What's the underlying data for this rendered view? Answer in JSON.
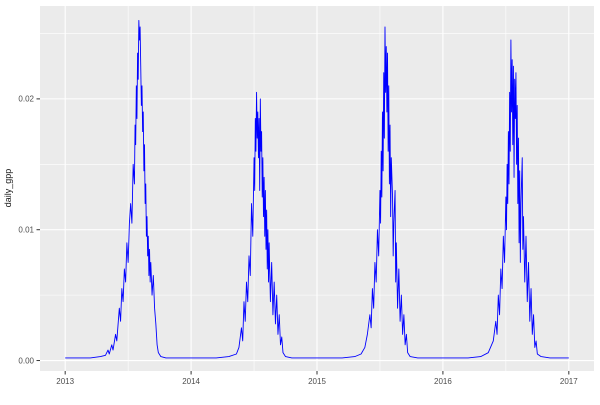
{
  "chart_data": {
    "type": "line",
    "title": "",
    "xlabel": "",
    "ylabel": "daily_gpp",
    "legend": "none",
    "grid": true,
    "style": "ggplot2",
    "panel_bg": "#EBEBEB",
    "grid_color": "#FFFFFF",
    "line_color": "#0000FF",
    "tick_label_color": "#4D4D4D",
    "axis_title_color": "#1A1A1A",
    "tick_mark_color": "#333333",
    "xlim": [
      2012.8,
      2017.2
    ],
    "ylim": [
      -0.0008,
      0.0271
    ],
    "x_ticks": [
      2013,
      2014,
      2015,
      2016,
      2017
    ],
    "x_tick_labels": [
      "2013",
      "2014",
      "2015",
      "2016",
      "2017"
    ],
    "x_minor_ticks": [
      2013.5,
      2014.5,
      2015.5,
      2016.5
    ],
    "y_ticks": [
      0,
      0.01,
      0.02
    ],
    "y_tick_labels": [
      "0.00",
      "0.01",
      "0.02"
    ],
    "y_minor_ticks": [
      0.005,
      0.015,
      0.025
    ],
    "points": [
      [
        2013.0,
        0.0002
      ],
      [
        2013.1,
        0.0002
      ],
      [
        2013.2,
        0.0002
      ],
      [
        2013.28,
        0.0003
      ],
      [
        2013.32,
        0.0004
      ],
      [
        2013.34,
        0.0008
      ],
      [
        2013.35,
        0.0005
      ],
      [
        2013.37,
        0.0012
      ],
      [
        2013.38,
        0.0008
      ],
      [
        2013.4,
        0.002
      ],
      [
        2013.41,
        0.0015
      ],
      [
        2013.43,
        0.004
      ],
      [
        2013.44,
        0.003
      ],
      [
        2013.45,
        0.0055
      ],
      [
        2013.46,
        0.0045
      ],
      [
        2013.47,
        0.007
      ],
      [
        2013.48,
        0.006
      ],
      [
        2013.49,
        0.009
      ],
      [
        2013.5,
        0.0075
      ],
      [
        2013.51,
        0.0105
      ],
      [
        2013.52,
        0.012
      ],
      [
        2013.53,
        0.0105
      ],
      [
        2013.54,
        0.015
      ],
      [
        2013.55,
        0.0135
      ],
      [
        2013.555,
        0.018
      ],
      [
        2013.56,
        0.0165
      ],
      [
        2013.565,
        0.021
      ],
      [
        2013.57,
        0.0185
      ],
      [
        2013.575,
        0.0235
      ],
      [
        2013.58,
        0.0215
      ],
      [
        2013.585,
        0.026
      ],
      [
        2013.59,
        0.0245
      ],
      [
        2013.595,
        0.0255
      ],
      [
        2013.6,
        0.0225
      ],
      [
        2013.605,
        0.0195
      ],
      [
        2013.61,
        0.021
      ],
      [
        2013.615,
        0.0175
      ],
      [
        2013.62,
        0.019
      ],
      [
        2013.625,
        0.0145
      ],
      [
        2013.63,
        0.0165
      ],
      [
        2013.635,
        0.012
      ],
      [
        2013.64,
        0.0135
      ],
      [
        2013.645,
        0.0095
      ],
      [
        2013.65,
        0.011
      ],
      [
        2013.655,
        0.008
      ],
      [
        2013.66,
        0.0095
      ],
      [
        2013.665,
        0.0065
      ],
      [
        2013.67,
        0.0085
      ],
      [
        2013.675,
        0.006
      ],
      [
        2013.68,
        0.0075
      ],
      [
        2013.69,
        0.005
      ],
      [
        2013.7,
        0.0065
      ],
      [
        2013.71,
        0.004
      ],
      [
        2013.72,
        0.0028
      ],
      [
        2013.73,
        0.0012
      ],
      [
        2013.74,
        0.0006
      ],
      [
        2013.76,
        0.0003
      ],
      [
        2013.8,
        0.0002
      ],
      [
        2013.9,
        0.0002
      ],
      [
        2014.0,
        0.0002
      ],
      [
        2014.1,
        0.0002
      ],
      [
        2014.2,
        0.0002
      ],
      [
        2014.3,
        0.0003
      ],
      [
        2014.36,
        0.0005
      ],
      [
        2014.38,
        0.001
      ],
      [
        2014.4,
        0.0025
      ],
      [
        2014.41,
        0.0015
      ],
      [
        2014.42,
        0.0045
      ],
      [
        2014.43,
        0.003
      ],
      [
        2014.44,
        0.006
      ],
      [
        2014.45,
        0.0045
      ],
      [
        2014.46,
        0.008
      ],
      [
        2014.47,
        0.0065
      ],
      [
        2014.48,
        0.012
      ],
      [
        2014.49,
        0.0095
      ],
      [
        2014.5,
        0.0155
      ],
      [
        2014.505,
        0.013
      ],
      [
        2014.51,
        0.0185
      ],
      [
        2014.515,
        0.016
      ],
      [
        2014.52,
        0.0205
      ],
      [
        2014.525,
        0.017
      ],
      [
        2014.53,
        0.019
      ],
      [
        2014.535,
        0.0155
      ],
      [
        2014.54,
        0.0185
      ],
      [
        2014.545,
        0.013
      ],
      [
        2014.55,
        0.02
      ],
      [
        2014.555,
        0.016
      ],
      [
        2014.56,
        0.0175
      ],
      [
        2014.565,
        0.0125
      ],
      [
        2014.57,
        0.0155
      ],
      [
        2014.575,
        0.011
      ],
      [
        2014.58,
        0.014
      ],
      [
        2014.585,
        0.0095
      ],
      [
        2014.59,
        0.013
      ],
      [
        2014.595,
        0.0085
      ],
      [
        2014.6,
        0.0115
      ],
      [
        2014.605,
        0.007
      ],
      [
        2014.61,
        0.01
      ],
      [
        2014.615,
        0.006
      ],
      [
        2014.62,
        0.009
      ],
      [
        2014.63,
        0.0045
      ],
      [
        2014.64,
        0.0075
      ],
      [
        2014.65,
        0.0035
      ],
      [
        2014.66,
        0.006
      ],
      [
        2014.67,
        0.0028
      ],
      [
        2014.68,
        0.005
      ],
      [
        2014.69,
        0.002
      ],
      [
        2014.7,
        0.0035
      ],
      [
        2014.71,
        0.0012
      ],
      [
        2014.72,
        0.0018
      ],
      [
        2014.73,
        0.0006
      ],
      [
        2014.75,
        0.0003
      ],
      [
        2014.8,
        0.0002
      ],
      [
        2014.9,
        0.0002
      ],
      [
        2015.0,
        0.0002
      ],
      [
        2015.1,
        0.0002
      ],
      [
        2015.2,
        0.0002
      ],
      [
        2015.3,
        0.0003
      ],
      [
        2015.35,
        0.0005
      ],
      [
        2015.38,
        0.001
      ],
      [
        2015.4,
        0.002
      ],
      [
        2015.42,
        0.0035
      ],
      [
        2015.43,
        0.0025
      ],
      [
        2015.44,
        0.0055
      ],
      [
        2015.45,
        0.004
      ],
      [
        2015.46,
        0.0075
      ],
      [
        2015.47,
        0.006
      ],
      [
        2015.48,
        0.01
      ],
      [
        2015.49,
        0.008
      ],
      [
        2015.5,
        0.013
      ],
      [
        2015.505,
        0.0105
      ],
      [
        2015.51,
        0.016
      ],
      [
        2015.515,
        0.0125
      ],
      [
        2015.52,
        0.019
      ],
      [
        2015.525,
        0.0145
      ],
      [
        2015.53,
        0.022
      ],
      [
        2015.535,
        0.017
      ],
      [
        2015.54,
        0.0255
      ],
      [
        2015.545,
        0.0205
      ],
      [
        2015.55,
        0.024
      ],
      [
        2015.555,
        0.019
      ],
      [
        2015.56,
        0.0235
      ],
      [
        2015.565,
        0.016
      ],
      [
        2015.57,
        0.021
      ],
      [
        2015.575,
        0.0135
      ],
      [
        2015.58,
        0.018
      ],
      [
        2015.585,
        0.011
      ],
      [
        2015.59,
        0.0155
      ],
      [
        2015.6,
        0.0125
      ],
      [
        2015.605,
        0.008
      ],
      [
        2015.61,
        0.0105
      ],
      [
        2015.62,
        0.013
      ],
      [
        2015.625,
        0.006
      ],
      [
        2015.63,
        0.009
      ],
      [
        2015.64,
        0.004
      ],
      [
        2015.65,
        0.007
      ],
      [
        2015.66,
        0.003
      ],
      [
        2015.67,
        0.005
      ],
      [
        2015.68,
        0.002
      ],
      [
        2015.69,
        0.0035
      ],
      [
        2015.7,
        0.0012
      ],
      [
        2015.71,
        0.002
      ],
      [
        2015.72,
        0.0006
      ],
      [
        2015.74,
        0.0003
      ],
      [
        2015.8,
        0.0002
      ],
      [
        2015.9,
        0.0002
      ],
      [
        2016.0,
        0.0002
      ],
      [
        2016.1,
        0.0002
      ],
      [
        2016.2,
        0.0002
      ],
      [
        2016.3,
        0.0003
      ],
      [
        2016.36,
        0.0006
      ],
      [
        2016.4,
        0.0015
      ],
      [
        2016.42,
        0.003
      ],
      [
        2016.43,
        0.002
      ],
      [
        2016.44,
        0.005
      ],
      [
        2016.45,
        0.0035
      ],
      [
        2016.46,
        0.007
      ],
      [
        2016.47,
        0.0055
      ],
      [
        2016.48,
        0.0095
      ],
      [
        2016.49,
        0.0075
      ],
      [
        2016.5,
        0.0125
      ],
      [
        2016.505,
        0.01
      ],
      [
        2016.51,
        0.015
      ],
      [
        2016.515,
        0.012
      ],
      [
        2016.52,
        0.0175
      ],
      [
        2016.525,
        0.0135
      ],
      [
        2016.53,
        0.0205
      ],
      [
        2016.535,
        0.016
      ],
      [
        2016.54,
        0.0245
      ],
      [
        2016.545,
        0.019
      ],
      [
        2016.55,
        0.023
      ],
      [
        2016.555,
        0.0165
      ],
      [
        2016.56,
        0.0225
      ],
      [
        2016.565,
        0.014
      ],
      [
        2016.57,
        0.0215
      ],
      [
        2016.575,
        0.0185
      ],
      [
        2016.58,
        0.022
      ],
      [
        2016.585,
        0.015
      ],
      [
        2016.59,
        0.0195
      ],
      [
        2016.595,
        0.012
      ],
      [
        2016.6,
        0.017
      ],
      [
        2016.605,
        0.009
      ],
      [
        2016.61,
        0.0145
      ],
      [
        2016.615,
        0.0075
      ],
      [
        2016.62,
        0.012
      ],
      [
        2016.63,
        0.0155
      ],
      [
        2016.635,
        0.0085
      ],
      [
        2016.64,
        0.011
      ],
      [
        2016.65,
        0.006
      ],
      [
        2016.66,
        0.0095
      ],
      [
        2016.67,
        0.0045
      ],
      [
        2016.68,
        0.0075
      ],
      [
        2016.69,
        0.003
      ],
      [
        2016.7,
        0.0055
      ],
      [
        2016.71,
        0.002
      ],
      [
        2016.72,
        0.0035
      ],
      [
        2016.73,
        0.001
      ],
      [
        2016.74,
        0.0015
      ],
      [
        2016.75,
        0.0005
      ],
      [
        2016.78,
        0.0003
      ],
      [
        2016.85,
        0.0002
      ],
      [
        2016.95,
        0.0002
      ],
      [
        2017.0,
        0.0002
      ]
    ]
  }
}
